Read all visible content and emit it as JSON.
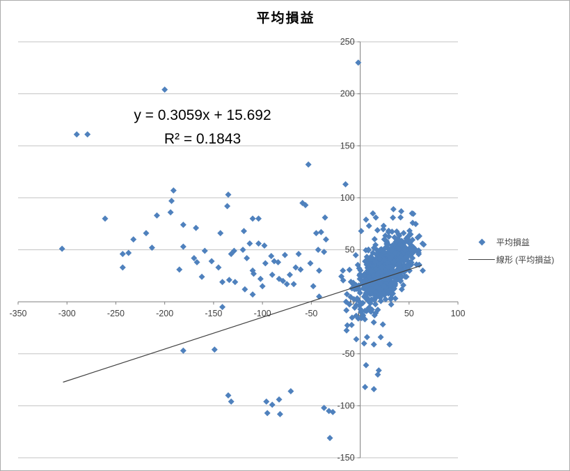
{
  "title": "平均損益",
  "equation": {
    "line1": "y = 0.3059x + 15.692",
    "line2": "R² = 0.1843"
  },
  "legend": [
    {
      "marker": "diamond",
      "label": "平均損益"
    },
    {
      "marker": "line",
      "label": "線形 (平均損益)"
    }
  ],
  "colors": {
    "marker": "#4F81BD",
    "trendline": "#404040",
    "gridline": "#C3C3C3",
    "axis": "#7F7F7F",
    "tick_text": "#404040",
    "border": "#ABABAB"
  },
  "chart_data": {
    "type": "scatter",
    "title": "平均損益",
    "series_name": "平均損益",
    "trendline_name": "線形 (平均損益)",
    "xlim": [
      -350,
      100
    ],
    "ylim": [
      -150,
      250
    ],
    "x_ticks": [
      -350,
      -300,
      -250,
      -200,
      -150,
      -100,
      -50,
      0,
      50,
      100
    ],
    "y_ticks": [
      250,
      200,
      150,
      100,
      50,
      0,
      -50,
      -100,
      -150
    ],
    "grid": "horizontal-only",
    "legend_position": "right",
    "trendline": {
      "slope": 0.3059,
      "intercept": 15.692,
      "r2": 0.1843,
      "x_start": -304,
      "x_end": 63
    },
    "points": [
      [
        -2,
        230
      ],
      [
        -200,
        204
      ],
      [
        -290,
        161
      ],
      [
        -279,
        161
      ],
      [
        -53,
        132
      ],
      [
        -15,
        113
      ],
      [
        -191,
        107
      ],
      [
        -193,
        97
      ],
      [
        -135,
        103
      ],
      [
        -136,
        92
      ],
      [
        -261,
        80
      ],
      [
        -208,
        83
      ],
      [
        -194,
        86
      ],
      [
        -181,
        74
      ],
      [
        -168,
        71
      ],
      [
        -143,
        66
      ],
      [
        -119,
        68
      ],
      [
        -110,
        80
      ],
      [
        -104,
        80
      ],
      [
        -232,
        60
      ],
      [
        -219,
        66
      ],
      [
        -305,
        51
      ],
      [
        -213,
        52
      ],
      [
        -181,
        53
      ],
      [
        -159,
        49
      ],
      [
        -243,
        46
      ],
      [
        -237,
        47
      ],
      [
        -59,
        95
      ],
      [
        -56,
        93
      ],
      [
        -45,
        66
      ],
      [
        -113,
        56
      ],
      [
        -104,
        56
      ],
      [
        -98,
        54
      ],
      [
        -243,
        33
      ],
      [
        -185,
        31
      ],
      [
        -170,
        42
      ],
      [
        -167,
        38
      ],
      [
        -162,
        24
      ],
      [
        -152,
        39
      ],
      [
        -145,
        33
      ],
      [
        -141,
        19
      ],
      [
        -134,
        21
      ],
      [
        -128,
        19
      ],
      [
        -132,
        46
      ],
      [
        -129,
        49
      ],
      [
        -120,
        50
      ],
      [
        -118,
        12
      ],
      [
        -116,
        42
      ],
      [
        -110,
        30
      ],
      [
        -109,
        27
      ],
      [
        -110,
        7
      ],
      [
        -102,
        22
      ],
      [
        -100,
        15
      ],
      [
        -97,
        37
      ],
      [
        -91,
        44
      ],
      [
        -90,
        26
      ],
      [
        -88,
        39
      ],
      [
        -84,
        38
      ],
      [
        -83,
        22
      ],
      [
        -79,
        20
      ],
      [
        -77,
        45
      ],
      [
        -75,
        17
      ],
      [
        -72,
        26
      ],
      [
        -68,
        17
      ],
      [
        -66,
        33
      ],
      [
        -63,
        46
      ],
      [
        -61,
        31
      ],
      [
        -51,
        37
      ],
      [
        -48,
        15
      ],
      [
        -43,
        50
      ],
      [
        -42,
        30
      ],
      [
        -42,
        5
      ],
      [
        -141,
        -5
      ],
      [
        -181,
        -47
      ],
      [
        -149,
        -46
      ],
      [
        -135,
        -90
      ],
      [
        -132,
        -96
      ],
      [
        -96,
        -96
      ],
      [
        -90,
        -99
      ],
      [
        -83,
        -94
      ],
      [
        -71,
        -86
      ],
      [
        -95,
        -107
      ],
      [
        -82,
        -108
      ],
      [
        -37,
        -102
      ],
      [
        -32,
        -105
      ],
      [
        -28,
        -106
      ],
      [
        -31,
        -131
      ],
      [
        7,
        -34
      ],
      [
        21,
        -34
      ],
      [
        4,
        -40
      ],
      [
        14,
        -41
      ],
      [
        30,
        -41
      ],
      [
        -4,
        -36
      ],
      [
        6,
        -61
      ],
      [
        19,
        -66
      ],
      [
        18,
        -70
      ],
      [
        5,
        -82
      ],
      [
        14,
        -84
      ],
      [
        13,
        85
      ],
      [
        16,
        81
      ],
      [
        6,
        79
      ],
      [
        24,
        73
      ],
      [
        29,
        67
      ],
      [
        1,
        68
      ],
      [
        9,
        73
      ],
      [
        -36,
        81
      ],
      [
        -37,
        48
      ],
      [
        -35,
        60
      ],
      [
        -40,
        67
      ],
      [
        42,
        87
      ],
      [
        34,
        89
      ],
      [
        53,
        85
      ],
      [
        65,
        55
      ],
      [
        64,
        30
      ]
    ],
    "dense_cluster": {
      "count": 680,
      "seed": 7,
      "x_mean": 25,
      "x_std": 15,
      "y_intercept": 12,
      "y_slope": 0.7,
      "y_std": 15,
      "x_range": [
        -24,
        64
      ],
      "y_range": [
        -30,
        86
      ]
    }
  }
}
